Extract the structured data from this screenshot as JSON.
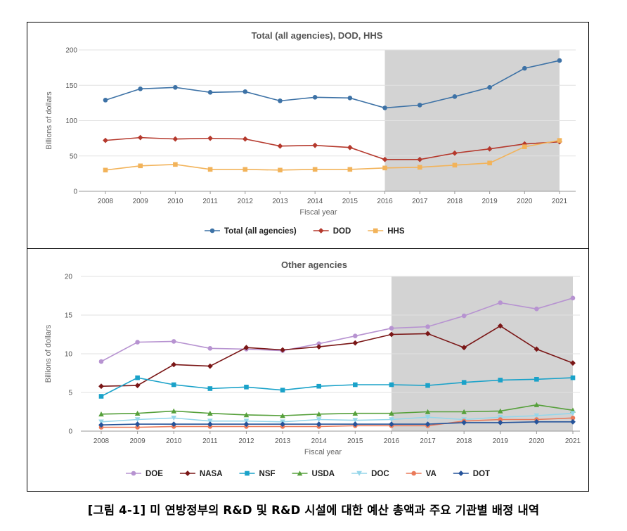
{
  "caption": "[그림 4-1] 미 연방정부의 R&D 및 R&D 시설에 대한 예산 총액과 주요 기관별 배정 내역",
  "chart_data": [
    {
      "type": "line",
      "title": "Total (all agencies), DOD, HHS",
      "xlabel": "Fiscal year",
      "ylabel": "Billions of dollars",
      "x": [
        2008,
        2009,
        2010,
        2011,
        2012,
        2013,
        2014,
        2015,
        2016,
        2017,
        2018,
        2019,
        2020,
        2021
      ],
      "yticks": [
        0,
        50,
        100,
        150,
        200
      ],
      "ylim": [
        0,
        200
      ],
      "shaded_range": [
        2016,
        2021
      ],
      "legend_position": "bottom",
      "series": [
        {
          "name": "Total (all agencies)",
          "color": "#3d72a6",
          "marker": "circle",
          "values": [
            129,
            145,
            147,
            140,
            141,
            128,
            133,
            132,
            118,
            122,
            134,
            147,
            174,
            185
          ]
        },
        {
          "name": "DOD",
          "color": "#b5392d",
          "marker": "diamond",
          "values": [
            72,
            76,
            74,
            75,
            74,
            64,
            65,
            62,
            45,
            45,
            54,
            60,
            67,
            70
          ]
        },
        {
          "name": "HHS",
          "color": "#f2b35a",
          "marker": "square",
          "values": [
            30,
            36,
            38,
            31,
            31,
            30,
            31,
            31,
            33,
            34,
            37,
            40,
            63,
            72
          ]
        }
      ]
    },
    {
      "type": "line",
      "title": "Other agencies",
      "xlabel": "Fiscal year",
      "ylabel": "Billions of dollars",
      "x": [
        2008,
        2009,
        2010,
        2011,
        2012,
        2013,
        2014,
        2015,
        2016,
        2017,
        2018,
        2019,
        2020,
        2021
      ],
      "yticks": [
        0,
        5,
        10,
        15,
        20
      ],
      "ylim": [
        0,
        20
      ],
      "shaded_range": [
        2016,
        2021
      ],
      "legend_position": "bottom",
      "series": [
        {
          "name": "DOE",
          "color": "#b793d1",
          "marker": "circle",
          "values": [
            9.0,
            11.5,
            11.6,
            10.7,
            10.6,
            10.4,
            11.3,
            12.3,
            13.3,
            13.5,
            14.9,
            16.6,
            15.8,
            17.2
          ]
        },
        {
          "name": "NASA",
          "color": "#7a1616",
          "marker": "diamond",
          "values": [
            5.8,
            5.9,
            8.6,
            8.4,
            10.8,
            10.5,
            10.9,
            11.4,
            12.5,
            12.6,
            10.8,
            13.6,
            10.6,
            8.8
          ]
        },
        {
          "name": "NSF",
          "color": "#1aa2c9",
          "marker": "square",
          "values": [
            4.5,
            6.9,
            6.0,
            5.5,
            5.7,
            5.3,
            5.8,
            6.0,
            6.0,
            5.9,
            6.3,
            6.6,
            6.7,
            6.9
          ]
        },
        {
          "name": "USDA",
          "color": "#56a03b",
          "marker": "triangle",
          "values": [
            2.2,
            2.3,
            2.6,
            2.3,
            2.1,
            2.0,
            2.2,
            2.3,
            2.3,
            2.5,
            2.5,
            2.6,
            3.4,
            2.7
          ]
        },
        {
          "name": "DOC",
          "color": "#95d6ea",
          "marker": "triangle-down",
          "values": [
            1.2,
            1.5,
            1.7,
            1.3,
            1.3,
            1.2,
            1.5,
            1.4,
            1.5,
            1.8,
            1.5,
            1.8,
            2.0,
            2.3
          ]
        },
        {
          "name": "VA",
          "color": "#ea7a5a",
          "marker": "circle",
          "values": [
            0.5,
            0.5,
            0.6,
            0.6,
            0.6,
            0.6,
            0.6,
            0.7,
            0.7,
            0.7,
            1.3,
            1.5,
            1.5,
            1.7
          ]
        },
        {
          "name": "DOT",
          "color": "#25539a",
          "marker": "diamond",
          "values": [
            0.8,
            0.9,
            0.9,
            0.9,
            0.9,
            0.9,
            0.9,
            0.9,
            0.9,
            0.9,
            1.1,
            1.1,
            1.2,
            1.2
          ]
        }
      ]
    }
  ]
}
